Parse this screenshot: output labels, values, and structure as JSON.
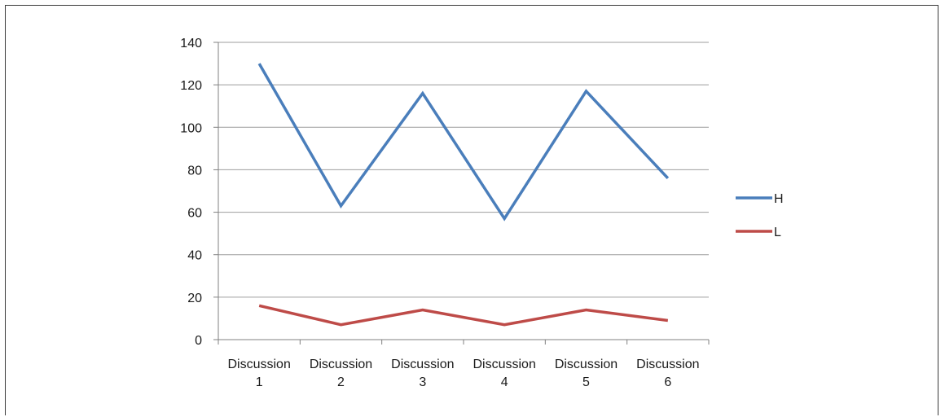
{
  "chart_data": {
    "type": "line",
    "categories": [
      [
        "Discussion",
        "1"
      ],
      [
        "Discussion",
        "2"
      ],
      [
        "Discussion",
        "3"
      ],
      [
        "Discussion",
        "4"
      ],
      [
        "Discussion",
        "5"
      ],
      [
        "Discussion",
        "6"
      ]
    ],
    "series": [
      {
        "name": "H",
        "color": "#4a7ebb",
        "values": [
          130,
          63,
          116,
          57,
          117,
          76
        ]
      },
      {
        "name": "L",
        "color": "#be4b48",
        "values": [
          16,
          7,
          14,
          7,
          14,
          9
        ]
      }
    ],
    "ylim": [
      0,
      140
    ],
    "yticks": [
      0,
      20,
      40,
      60,
      80,
      100,
      120,
      140
    ],
    "grid": true,
    "legend": "right"
  }
}
